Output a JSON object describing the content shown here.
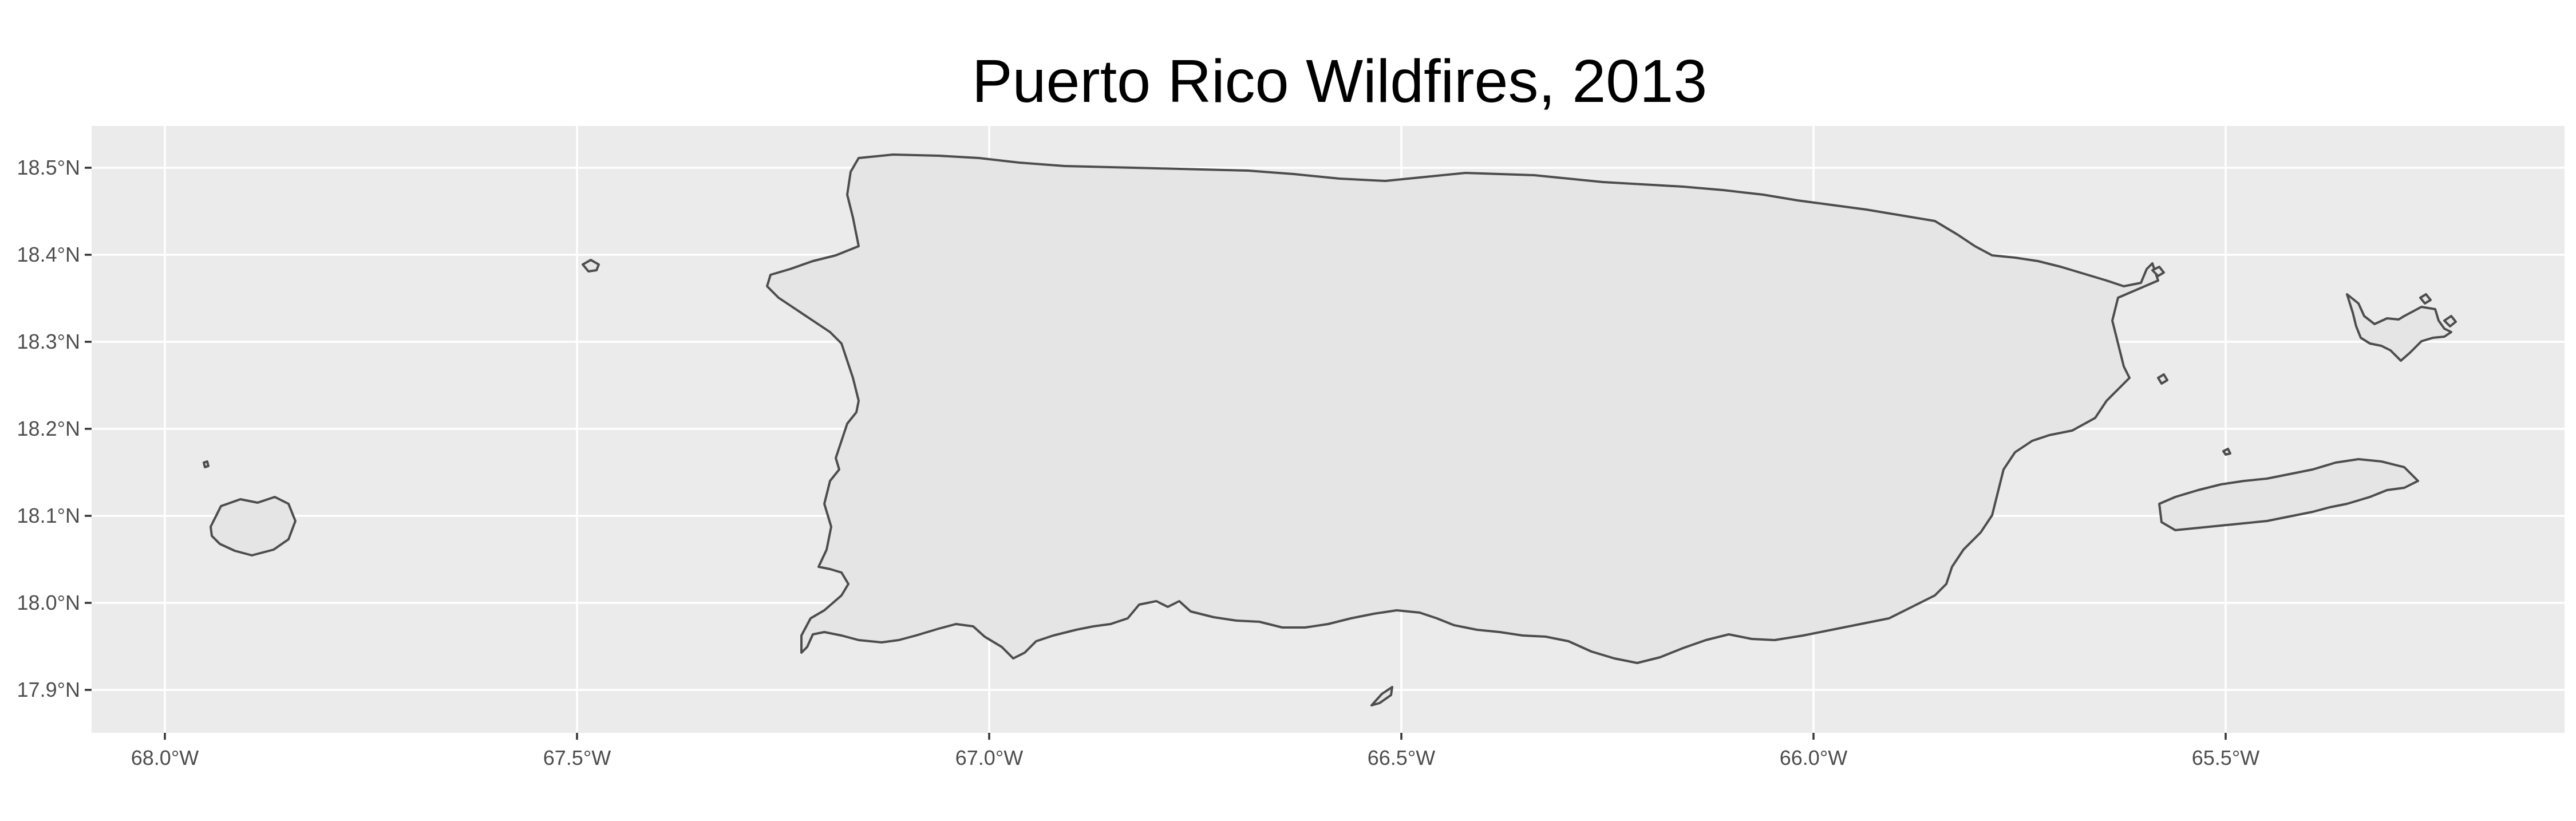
{
  "title": "Puerto Rico Wildfires, 2013",
  "map": {
    "panel_background": "#ebebeb",
    "gridline_color": "#ffffff",
    "land_fill": "#e5e5e5",
    "land_outline": "#4d4d4d",
    "x_ticks": [
      {
        "value": -68.0,
        "label": "68.0°W"
      },
      {
        "value": -67.5,
        "label": "67.5°W"
      },
      {
        "value": -67.0,
        "label": "67.0°W"
      },
      {
        "value": -66.5,
        "label": "66.5°W"
      },
      {
        "value": -66.0,
        "label": "66.0°W"
      },
      {
        "value": -65.5,
        "label": "65.5°W"
      }
    ],
    "y_ticks": [
      {
        "value": 18.5,
        "label": "18.5°N"
      },
      {
        "value": 18.4,
        "label": "18.4°N"
      },
      {
        "value": 18.3,
        "label": "18.3°N"
      },
      {
        "value": 18.2,
        "label": "18.2°N"
      },
      {
        "value": 18.1,
        "label": "18.1°N"
      },
      {
        "value": 18.0,
        "label": "18.0°N"
      },
      {
        "value": 17.9,
        "label": "17.9°N"
      }
    ],
    "regions": [
      "Puerto Rico",
      "Mona Island",
      "Desecheo Island",
      "Vieques",
      "Culebra",
      "Caja de Muertos"
    ]
  }
}
